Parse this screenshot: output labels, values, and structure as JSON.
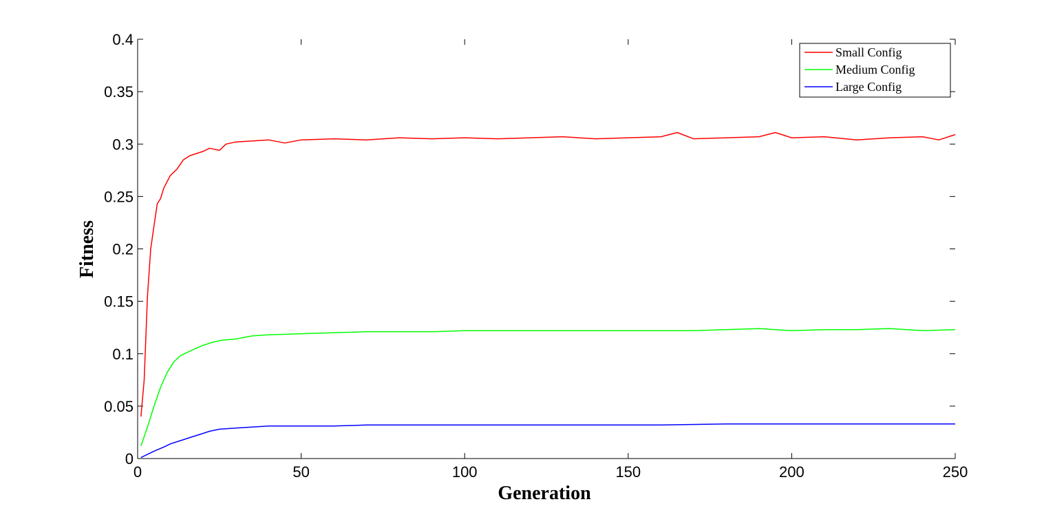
{
  "chart_data": {
    "type": "line",
    "title": "",
    "xlabel": "Generation",
    "ylabel": "Fitness",
    "xlim": [
      0,
      250
    ],
    "ylim": [
      0,
      0.4
    ],
    "xticks": [
      0,
      50,
      100,
      150,
      200,
      250
    ],
    "xtick_labels": [
      "0",
      "50",
      "100",
      "150",
      "200",
      "250"
    ],
    "yticks": [
      0,
      0.05,
      0.1,
      0.15,
      0.2,
      0.25,
      0.3,
      0.35,
      0.4
    ],
    "ytick_labels": [
      "0",
      "0.05",
      "0.1",
      "0.15",
      "0.2",
      "0.25",
      "0.3",
      "0.35",
      "0.4"
    ],
    "grid": false,
    "legend_position": "top-right",
    "series": [
      {
        "name": "Small Config",
        "color": "#ff0000",
        "points": [
          [
            1,
            0.04
          ],
          [
            2,
            0.075
          ],
          [
            3,
            0.155
          ],
          [
            4,
            0.2
          ],
          [
            5,
            0.222
          ],
          [
            6,
            0.243
          ],
          [
            7,
            0.248
          ],
          [
            8,
            0.258
          ],
          [
            10,
            0.27
          ],
          [
            12,
            0.276
          ],
          [
            14,
            0.285
          ],
          [
            16,
            0.289
          ],
          [
            18,
            0.291
          ],
          [
            20,
            0.293
          ],
          [
            22,
            0.296
          ],
          [
            25,
            0.294
          ],
          [
            27,
            0.3
          ],
          [
            30,
            0.302
          ],
          [
            35,
            0.303
          ],
          [
            40,
            0.304
          ],
          [
            45,
            0.301
          ],
          [
            50,
            0.304
          ],
          [
            60,
            0.305
          ],
          [
            70,
            0.304
          ],
          [
            80,
            0.306
          ],
          [
            90,
            0.305
          ],
          [
            100,
            0.306
          ],
          [
            110,
            0.305
          ],
          [
            120,
            0.306
          ],
          [
            130,
            0.307
          ],
          [
            140,
            0.305
          ],
          [
            150,
            0.306
          ],
          [
            160,
            0.307
          ],
          [
            165,
            0.311
          ],
          [
            170,
            0.305
          ],
          [
            180,
            0.306
          ],
          [
            190,
            0.307
          ],
          [
            195,
            0.311
          ],
          [
            200,
            0.306
          ],
          [
            210,
            0.307
          ],
          [
            220,
            0.304
          ],
          [
            230,
            0.306
          ],
          [
            240,
            0.307
          ],
          [
            245,
            0.304
          ],
          [
            250,
            0.309
          ]
        ]
      },
      {
        "name": "Medium Config",
        "color": "#00ff00",
        "points": [
          [
            1,
            0.012
          ],
          [
            3,
            0.03
          ],
          [
            5,
            0.05
          ],
          [
            7,
            0.068
          ],
          [
            9,
            0.082
          ],
          [
            11,
            0.092
          ],
          [
            13,
            0.098
          ],
          [
            15,
            0.101
          ],
          [
            17,
            0.104
          ],
          [
            20,
            0.108
          ],
          [
            23,
            0.111
          ],
          [
            26,
            0.113
          ],
          [
            30,
            0.114
          ],
          [
            35,
            0.117
          ],
          [
            40,
            0.118
          ],
          [
            50,
            0.119
          ],
          [
            60,
            0.12
          ],
          [
            70,
            0.121
          ],
          [
            80,
            0.121
          ],
          [
            90,
            0.121
          ],
          [
            100,
            0.122
          ],
          [
            120,
            0.122
          ],
          [
            140,
            0.122
          ],
          [
            150,
            0.122
          ],
          [
            160,
            0.122
          ],
          [
            170,
            0.122
          ],
          [
            180,
            0.123
          ],
          [
            190,
            0.124
          ],
          [
            200,
            0.122
          ],
          [
            210,
            0.123
          ],
          [
            220,
            0.123
          ],
          [
            230,
            0.124
          ],
          [
            240,
            0.122
          ],
          [
            250,
            0.123
          ]
        ]
      },
      {
        "name": "Large Config",
        "color": "#0000ff",
        "points": [
          [
            1,
            0.001
          ],
          [
            3,
            0.004
          ],
          [
            5,
            0.007
          ],
          [
            8,
            0.011
          ],
          [
            10,
            0.014
          ],
          [
            13,
            0.017
          ],
          [
            16,
            0.02
          ],
          [
            19,
            0.023
          ],
          [
            22,
            0.026
          ],
          [
            25,
            0.028
          ],
          [
            30,
            0.029
          ],
          [
            35,
            0.03
          ],
          [
            40,
            0.031
          ],
          [
            50,
            0.031
          ],
          [
            60,
            0.031
          ],
          [
            70,
            0.032
          ],
          [
            80,
            0.032
          ],
          [
            100,
            0.032
          ],
          [
            120,
            0.032
          ],
          [
            140,
            0.032
          ],
          [
            160,
            0.032
          ],
          [
            180,
            0.033
          ],
          [
            200,
            0.033
          ],
          [
            220,
            0.033
          ],
          [
            240,
            0.033
          ],
          [
            250,
            0.033
          ]
        ]
      }
    ]
  }
}
